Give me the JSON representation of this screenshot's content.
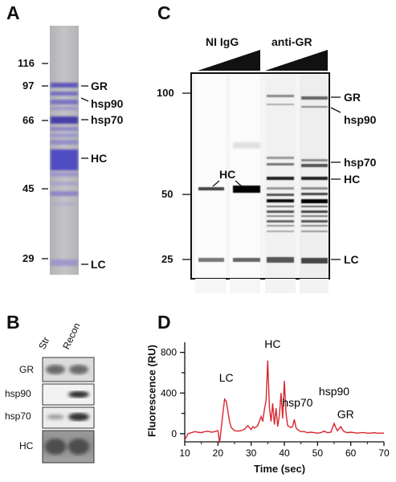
{
  "panels": {
    "A": {
      "letter": "A",
      "markers": [
        "116",
        "97",
        "66",
        "45",
        "29"
      ],
      "bands": [
        "GR",
        "hsp90",
        "hsp70",
        "HC",
        "LC"
      ]
    },
    "B": {
      "letter": "B",
      "lanes": [
        "Str",
        "Recon"
      ],
      "rows": [
        "GR",
        "hsp90",
        "hsp70",
        "HC"
      ]
    },
    "C": {
      "letter": "C",
      "groups": [
        "NI IgG",
        "anti-GR"
      ],
      "markers": [
        "100",
        "50",
        "25"
      ],
      "right_bands": [
        "GR",
        "hsp90",
        "hsp70",
        "HC",
        "LC"
      ],
      "hc_label": "HC"
    },
    "D": {
      "letter": "D",
      "chart_data": {
        "type": "line",
        "ylabel": "Fluorescence (RU)",
        "xlabel": "Time (sec)",
        "xlim": [
          10,
          70
        ],
        "ylim": [
          -80,
          900
        ],
        "x_ticks": [
          "10",
          "20",
          "30",
          "40",
          "50",
          "60",
          "70"
        ],
        "y_ticks": [
          "800",
          "400",
          "0"
        ],
        "series_color": "#d9262e",
        "peaks": [
          {
            "label": "LC",
            "x": 22.5,
            "y": 340
          },
          {
            "label": "HC",
            "x": 35,
            "y": 720
          },
          {
            "label": "hsp70",
            "x": 43,
            "y": 110
          },
          {
            "label": "hsp90",
            "x": 55,
            "y": 110
          },
          {
            "label": "GR",
            "x": 57,
            "y": 60
          }
        ],
        "x": [
          10,
          11,
          12,
          13,
          14,
          15,
          16,
          17,
          18,
          19,
          20,
          20.5,
          21,
          21.5,
          22,
          22.5,
          23,
          23.5,
          24,
          25,
          26,
          27,
          28,
          29,
          30,
          30.5,
          31,
          32,
          33,
          33.5,
          34,
          34.5,
          35,
          35.5,
          36,
          36.5,
          37,
          37.5,
          38,
          38.5,
          39,
          39.5,
          40,
          40.5,
          41,
          42,
          42.5,
          43,
          43.5,
          44,
          45,
          46,
          47,
          48,
          49,
          50,
          51,
          52,
          53,
          54,
          55,
          55.5,
          56,
          57,
          57.5,
          58,
          59,
          60,
          61,
          62,
          63,
          64,
          65,
          66,
          67,
          68,
          69,
          70
        ],
        "y": [
          -60,
          0,
          10,
          20,
          15,
          10,
          20,
          25,
          15,
          20,
          30,
          -90,
          60,
          200,
          340,
          320,
          220,
          120,
          60,
          30,
          25,
          30,
          45,
          80,
          40,
          70,
          55,
          80,
          170,
          120,
          240,
          330,
          720,
          260,
          120,
          300,
          90,
          250,
          70,
          180,
          400,
          150,
          520,
          200,
          80,
          60,
          70,
          140,
          60,
          40,
          20,
          20,
          10,
          15,
          10,
          5,
          10,
          25,
          10,
          15,
          100,
          60,
          30,
          70,
          40,
          20,
          10,
          15,
          10,
          5,
          10,
          10,
          5,
          5,
          10,
          5,
          5,
          5
        ]
      }
    }
  }
}
